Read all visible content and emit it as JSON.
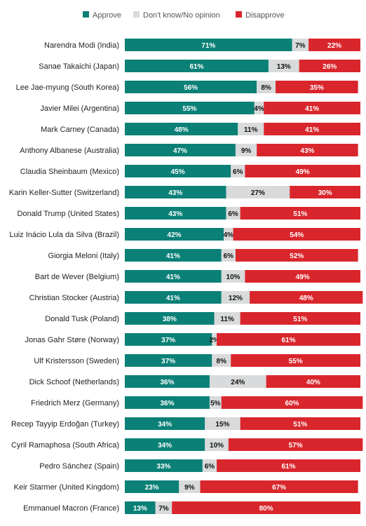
{
  "chart_data": {
    "type": "bar",
    "orientation": "horizontal",
    "stacked": true,
    "legend_position": "top",
    "grid": false,
    "xlim": [
      0,
      100
    ],
    "series": [
      {
        "name": "Approve",
        "color": "#0b8077",
        "label_color": "#ffffff",
        "values": [
          71,
          61,
          56,
          55,
          48,
          47,
          45,
          43,
          43,
          42,
          41,
          41,
          41,
          38,
          37,
          37,
          36,
          36,
          34,
          34,
          33,
          23,
          13
        ]
      },
      {
        "name": "Don't know/No opinion",
        "color": "#d8dadb",
        "label_color": "#111111",
        "values": [
          7,
          13,
          8,
          4,
          11,
          9,
          6,
          27,
          6,
          4,
          6,
          10,
          12,
          11,
          2,
          8,
          24,
          5,
          15,
          10,
          6,
          9,
          7
        ]
      },
      {
        "name": "Disapprove",
        "color": "#d9262c",
        "label_color": "#ffffff",
        "values": [
          22,
          26,
          35,
          41,
          41,
          43,
          49,
          30,
          51,
          54,
          52,
          49,
          48,
          51,
          61,
          55,
          40,
          60,
          51,
          57,
          61,
          67,
          80
        ]
      }
    ],
    "categories": [
      "Narendra Modi (India)",
      "Sanae Takaichi (Japan)",
      "Lee Jae-myung (South Korea)",
      "Javier Milei (Argentina)",
      "Mark Carney (Canada)",
      "Anthony Albanese (Australia)",
      "Claudia Sheinbaum (Mexico)",
      "Karin Keller-Sutter (Switzerland)",
      "Donald Trump (United States)",
      "Luiz Inácio Lula da Silva (Brazil)",
      "Giorgia Meloni (Italy)",
      "Bart de Wever (Belgium)",
      "Christian Stocker (Austria)",
      "Donald Tusk (Poland)",
      "Jonas Gahr Støre (Norway)",
      "Ulf Kristersson (Sweden)",
      "Dick Schoof (Netherlands)",
      "Friedrich Merz (Germany)",
      "Recep Tayyip Erdoğan (Turkey)",
      "Cyril Ramaphosa (South Africa)",
      "Pedro Sánchez (Spain)",
      "Keir Starmer (United Kingdom)",
      "Emmanuel Macron (France)"
    ]
  }
}
